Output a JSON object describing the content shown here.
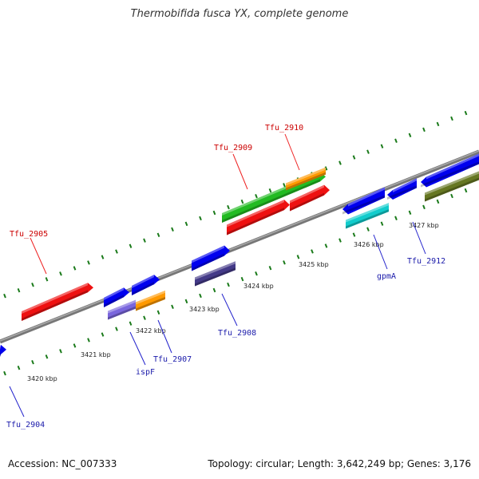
{
  "title": "Thermobifida fusca YX, complete genome",
  "footer": {
    "accession": "Accession: NC_007333",
    "summary": "Topology: circular; Length: 3,642,249 bp; Genes: 3,176"
  },
  "colors": {
    "backbone": "#888888",
    "dots": "#1a7a1a",
    "label_red": "#cc0000",
    "label_blue": "#1a1aaa",
    "label_line_red": "#ee2222",
    "label_line_blue": "#2222cc"
  },
  "scale": {
    "unit": "kbp",
    "ticks": [
      "3420 kbp",
      "3421 kbp",
      "3422 kbp",
      "3423 kbp",
      "3424 kbp",
      "3425 kbp",
      "3426 kbp",
      "3427 kbp"
    ]
  },
  "genes": [
    {
      "label": "Tfu_2904",
      "color": "#0000ee",
      "label_color": "blue"
    },
    {
      "label": "Tfu_2905",
      "color": "#ee1111",
      "label_color": "red"
    },
    {
      "label": "ispF",
      "color": "#0000ee",
      "label_color": "blue"
    },
    {
      "label": "Tfu_2907",
      "color": "#0000ee",
      "label_color": "blue"
    },
    {
      "label": "Tfu_2908",
      "color": "#0000ee",
      "label_color": "blue"
    },
    {
      "label": "Tfu_2909",
      "color": "#22bb22",
      "label_color": "red"
    },
    {
      "label": "Tfu_2910",
      "color": "#ee1111",
      "label_color": "red"
    },
    {
      "label": "gpmA",
      "color": "#0000ee",
      "label_color": "blue"
    },
    {
      "label": "Tfu_2912",
      "color": "#0000ee",
      "label_color": "blue"
    }
  ]
}
